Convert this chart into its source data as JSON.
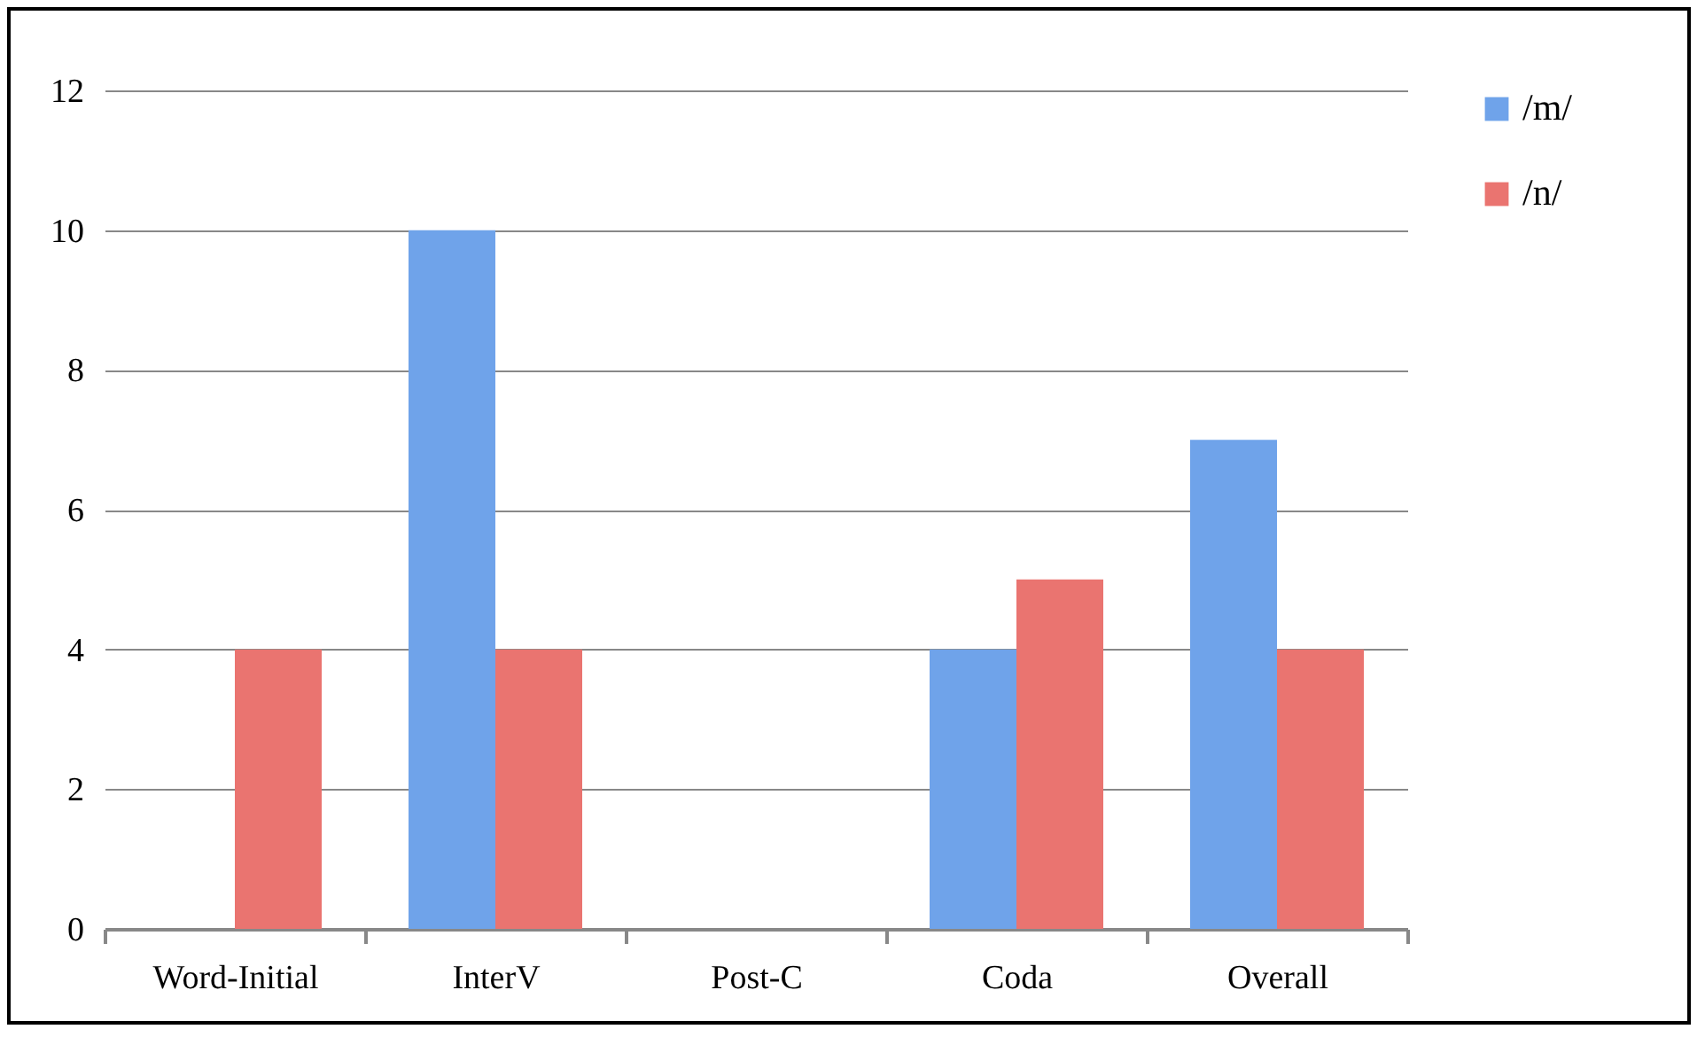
{
  "chart_data": {
    "type": "bar",
    "categories": [
      "Word-Initial",
      "InterV",
      "Post-C",
      "Coda",
      "Overall"
    ],
    "series": [
      {
        "name": "/m/",
        "color": "#6fa3ea",
        "values": [
          0,
          10,
          0,
          4,
          7
        ]
      },
      {
        "name": "/n/",
        "color": "#ea7470",
        "values": [
          4,
          4,
          0,
          5,
          4
        ]
      }
    ],
    "ylim": [
      0,
      12
    ],
    "yticks": [
      0,
      2,
      4,
      6,
      8,
      10,
      12
    ],
    "grid": "y",
    "legend": "right"
  }
}
